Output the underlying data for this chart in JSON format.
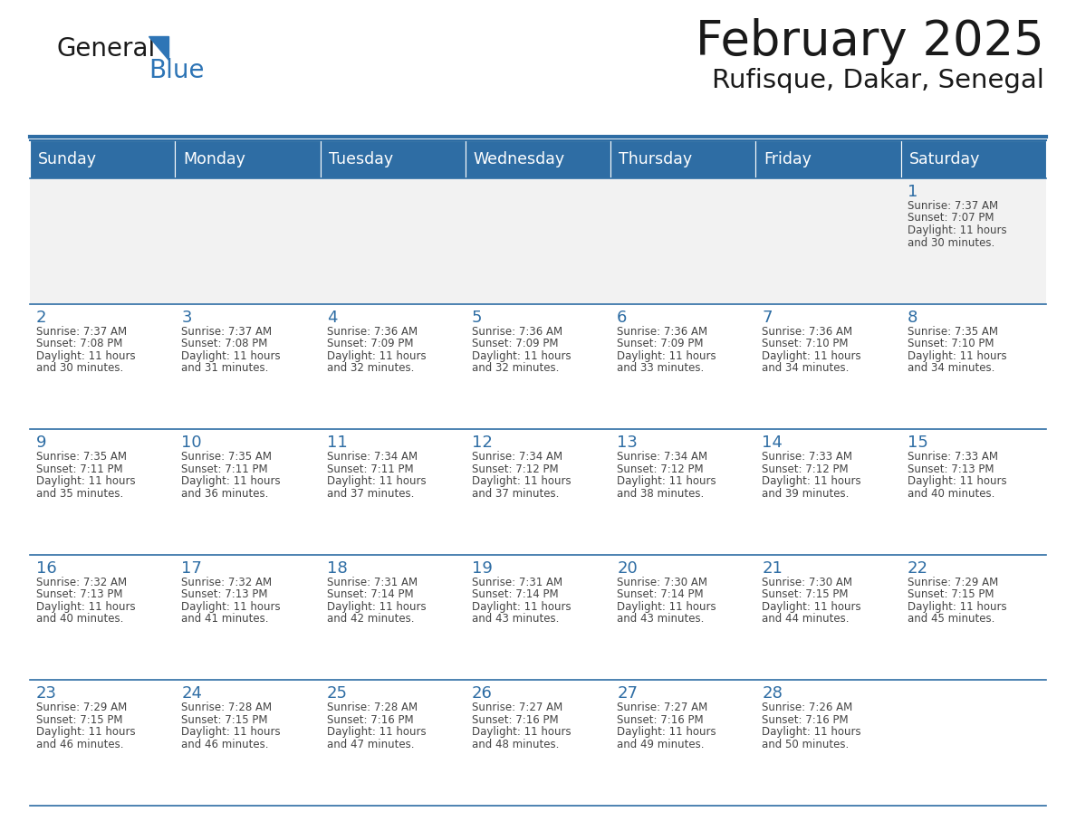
{
  "title": "February 2025",
  "subtitle": "Rufisque, Dakar, Senegal",
  "header_bg_color": "#2E6DA4",
  "header_text_color": "#FFFFFF",
  "cell_bg_color_odd": "#F2F2F2",
  "cell_bg_color_even": "#FFFFFF",
  "day_number_color": "#2E6DA4",
  "text_color": "#444444",
  "border_color": "#2E6DA4",
  "days_of_week": [
    "Sunday",
    "Monday",
    "Tuesday",
    "Wednesday",
    "Thursday",
    "Friday",
    "Saturday"
  ],
  "calendar": [
    [
      {
        "day": null,
        "info": ""
      },
      {
        "day": null,
        "info": ""
      },
      {
        "day": null,
        "info": ""
      },
      {
        "day": null,
        "info": ""
      },
      {
        "day": null,
        "info": ""
      },
      {
        "day": null,
        "info": ""
      },
      {
        "day": 1,
        "info": "Sunrise: 7:37 AM\nSunset: 7:07 PM\nDaylight: 11 hours\nand 30 minutes."
      }
    ],
    [
      {
        "day": 2,
        "info": "Sunrise: 7:37 AM\nSunset: 7:08 PM\nDaylight: 11 hours\nand 30 minutes."
      },
      {
        "day": 3,
        "info": "Sunrise: 7:37 AM\nSunset: 7:08 PM\nDaylight: 11 hours\nand 31 minutes."
      },
      {
        "day": 4,
        "info": "Sunrise: 7:36 AM\nSunset: 7:09 PM\nDaylight: 11 hours\nand 32 minutes."
      },
      {
        "day": 5,
        "info": "Sunrise: 7:36 AM\nSunset: 7:09 PM\nDaylight: 11 hours\nand 32 minutes."
      },
      {
        "day": 6,
        "info": "Sunrise: 7:36 AM\nSunset: 7:09 PM\nDaylight: 11 hours\nand 33 minutes."
      },
      {
        "day": 7,
        "info": "Sunrise: 7:36 AM\nSunset: 7:10 PM\nDaylight: 11 hours\nand 34 minutes."
      },
      {
        "day": 8,
        "info": "Sunrise: 7:35 AM\nSunset: 7:10 PM\nDaylight: 11 hours\nand 34 minutes."
      }
    ],
    [
      {
        "day": 9,
        "info": "Sunrise: 7:35 AM\nSunset: 7:11 PM\nDaylight: 11 hours\nand 35 minutes."
      },
      {
        "day": 10,
        "info": "Sunrise: 7:35 AM\nSunset: 7:11 PM\nDaylight: 11 hours\nand 36 minutes."
      },
      {
        "day": 11,
        "info": "Sunrise: 7:34 AM\nSunset: 7:11 PM\nDaylight: 11 hours\nand 37 minutes."
      },
      {
        "day": 12,
        "info": "Sunrise: 7:34 AM\nSunset: 7:12 PM\nDaylight: 11 hours\nand 37 minutes."
      },
      {
        "day": 13,
        "info": "Sunrise: 7:34 AM\nSunset: 7:12 PM\nDaylight: 11 hours\nand 38 minutes."
      },
      {
        "day": 14,
        "info": "Sunrise: 7:33 AM\nSunset: 7:12 PM\nDaylight: 11 hours\nand 39 minutes."
      },
      {
        "day": 15,
        "info": "Sunrise: 7:33 AM\nSunset: 7:13 PM\nDaylight: 11 hours\nand 40 minutes."
      }
    ],
    [
      {
        "day": 16,
        "info": "Sunrise: 7:32 AM\nSunset: 7:13 PM\nDaylight: 11 hours\nand 40 minutes."
      },
      {
        "day": 17,
        "info": "Sunrise: 7:32 AM\nSunset: 7:13 PM\nDaylight: 11 hours\nand 41 minutes."
      },
      {
        "day": 18,
        "info": "Sunrise: 7:31 AM\nSunset: 7:14 PM\nDaylight: 11 hours\nand 42 minutes."
      },
      {
        "day": 19,
        "info": "Sunrise: 7:31 AM\nSunset: 7:14 PM\nDaylight: 11 hours\nand 43 minutes."
      },
      {
        "day": 20,
        "info": "Sunrise: 7:30 AM\nSunset: 7:14 PM\nDaylight: 11 hours\nand 43 minutes."
      },
      {
        "day": 21,
        "info": "Sunrise: 7:30 AM\nSunset: 7:15 PM\nDaylight: 11 hours\nand 44 minutes."
      },
      {
        "day": 22,
        "info": "Sunrise: 7:29 AM\nSunset: 7:15 PM\nDaylight: 11 hours\nand 45 minutes."
      }
    ],
    [
      {
        "day": 23,
        "info": "Sunrise: 7:29 AM\nSunset: 7:15 PM\nDaylight: 11 hours\nand 46 minutes."
      },
      {
        "day": 24,
        "info": "Sunrise: 7:28 AM\nSunset: 7:15 PM\nDaylight: 11 hours\nand 46 minutes."
      },
      {
        "day": 25,
        "info": "Sunrise: 7:28 AM\nSunset: 7:16 PM\nDaylight: 11 hours\nand 47 minutes."
      },
      {
        "day": 26,
        "info": "Sunrise: 7:27 AM\nSunset: 7:16 PM\nDaylight: 11 hours\nand 48 minutes."
      },
      {
        "day": 27,
        "info": "Sunrise: 7:27 AM\nSunset: 7:16 PM\nDaylight: 11 hours\nand 49 minutes."
      },
      {
        "day": 28,
        "info": "Sunrise: 7:26 AM\nSunset: 7:16 PM\nDaylight: 11 hours\nand 50 minutes."
      },
      {
        "day": null,
        "info": ""
      }
    ]
  ],
  "logo_text_general": "General",
  "logo_text_blue": "Blue",
  "logo_color_general": "#1a1a1a",
  "logo_color_blue": "#2E75B6",
  "logo_triangle_color": "#2E75B6",
  "fig_width": 11.88,
  "fig_height": 9.18,
  "dpi": 100
}
